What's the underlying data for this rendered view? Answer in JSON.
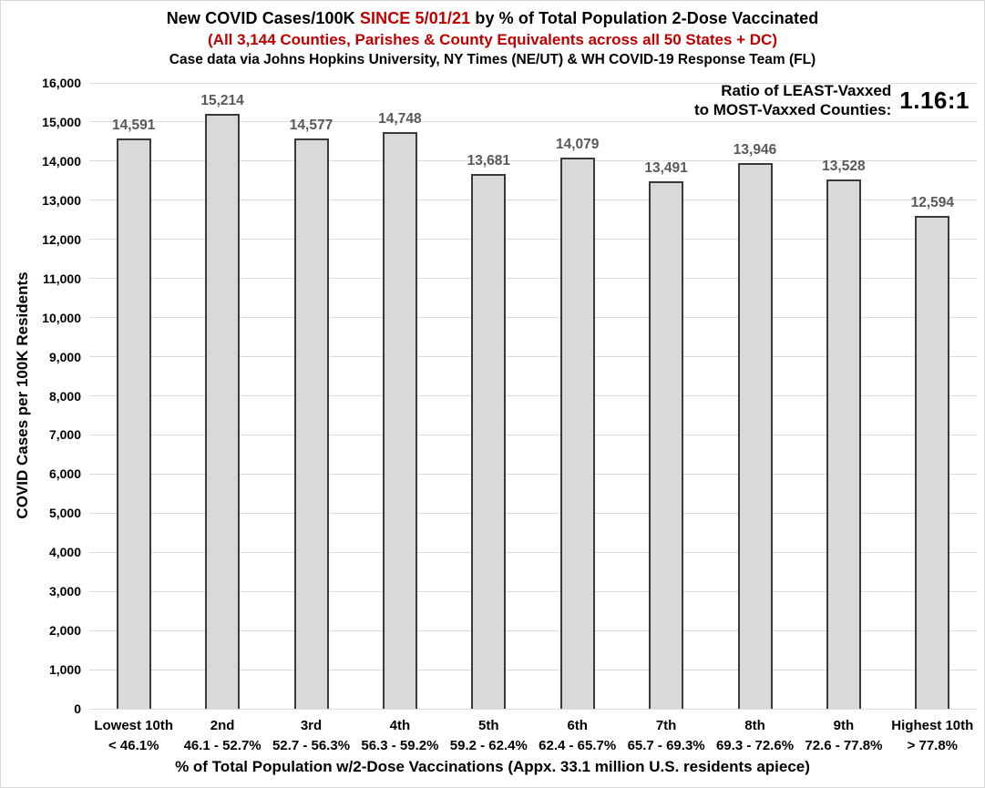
{
  "header": {
    "title_prefix": "New COVID Cases/100K ",
    "title_highlight": "SINCE 5/01/21",
    "title_suffix": " by % of Total Population 2-Dose Vaccinated",
    "subtitle": "(All 3,144 Counties, Parishes & County Equivalents across all 50 States + DC)",
    "source_line": "Case data via Johns Hopkins University, NY Times (NE/UT) & WH COVID-19 Response Team (FL)"
  },
  "annotation": {
    "label_line1": "Ratio of LEAST-Vaxxed",
    "label_line2": "to MOST-Vaxxed Counties:",
    "value": "1.16:1"
  },
  "chart_data": {
    "type": "bar",
    "title": "New COVID Cases/100K SINCE 5/01/21 by % of Total Population 2-Dose Vaccinated",
    "subtitle": "(All 3,144 Counties, Parishes & County Equivalents across all 50 States + DC)",
    "source": "Case data via Johns Hopkins University, NY Times (NE/UT) & WH COVID-19 Response Team (FL)",
    "categories": [
      "Lowest 10th",
      "2nd",
      "3rd",
      "4th",
      "5th",
      "6th",
      "7th",
      "8th",
      "9th",
      "Highest 10th"
    ],
    "category_ranges": [
      "< 46.1%",
      "46.1 - 52.7%",
      "52.7 - 56.3%",
      "56.3 - 59.2%",
      "59.2 - 62.4%",
      "62.4 - 65.7%",
      "65.7 - 69.3%",
      "69.3 - 72.6%",
      "72.6 - 77.8%",
      "> 77.8%"
    ],
    "values": [
      14591,
      15214,
      14577,
      14748,
      13681,
      14079,
      13491,
      13946,
      13528,
      12594
    ],
    "xlabel": "% of Total Population w/2-Dose Vaccinations (Appx. 33.1 million U.S. residents apiece)",
    "ylabel": "COVID Cases per 100K Residents",
    "ylim": [
      0,
      16000
    ],
    "ytick_step": 1000,
    "grid": true,
    "legend": "none",
    "colors": {
      "bar_fill": "#d9d9d9",
      "bar_border": "#3a3a3a",
      "gridline": "#dcdcdc",
      "value_label": "#595959",
      "highlight_red": "#c00000",
      "text": "#000000"
    }
  }
}
